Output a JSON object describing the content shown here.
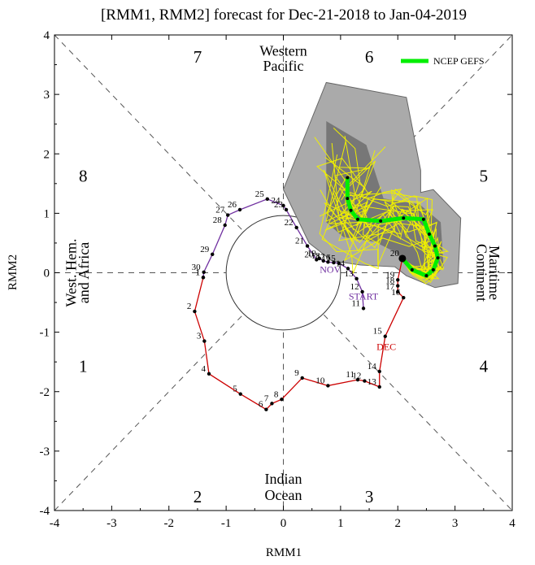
{
  "chart_data": {
    "type": "scatter",
    "title": "[RMM1, RMM2] forecast for Dec-21-2018 to Jan-04-2019",
    "xlabel": "RMM1",
    "ylabel": "RMM2",
    "xlim": [
      -4,
      4
    ],
    "ylim": [
      -4,
      4
    ],
    "xticks": [
      "-4",
      "-3",
      "-2",
      "-1",
      "0",
      "1",
      "2",
      "3",
      "4"
    ],
    "yticks": [
      "-4",
      "-3",
      "-2",
      "-1",
      "0",
      "1",
      "2",
      "3",
      "4"
    ],
    "phase_labels": [
      {
        "text": "1",
        "x": -3.5,
        "y": -1.6
      },
      {
        "text": "2",
        "x": -1.5,
        "y": -3.8
      },
      {
        "text": "3",
        "x": 1.5,
        "y": -3.8
      },
      {
        "text": "4",
        "x": 3.5,
        "y": -1.6
      },
      {
        "text": "5",
        "x": 3.5,
        "y": 1.6
      },
      {
        "text": "6",
        "x": 1.5,
        "y": 3.6
      },
      {
        "text": "7",
        "x": -1.5,
        "y": 3.6
      },
      {
        "text": "8",
        "x": -3.5,
        "y": 1.6
      }
    ],
    "region_labels": {
      "top": [
        "Western",
        "Pacific"
      ],
      "bottom": [
        "Indian",
        "Ocean"
      ],
      "left": [
        "West. Hem.",
        "and Africa"
      ],
      "right": [
        "Maritime",
        "Continent"
      ]
    },
    "month_labels": [
      {
        "text": "START",
        "x": 1.4,
        "y": -0.45,
        "color": "#7030a0"
      },
      {
        "text": "NOV",
        "x": 0.82,
        "y": 0.0,
        "color": "#7030a0"
      },
      {
        "text": "DEC",
        "x": 1.8,
        "y": -1.3,
        "color": "#cc0000"
      }
    ],
    "legend": {
      "entry": "NCEP GEFS",
      "color": "#00ee00",
      "position": "top-right"
    },
    "series": [
      {
        "name": "NOV",
        "color": "#7030a0",
        "points": [
          {
            "label": "11",
            "x": 1.4,
            "y": -0.6
          },
          {
            "label": "12",
            "x": 1.38,
            "y": -0.32
          },
          {
            "label": "13",
            "x": 1.28,
            "y": -0.1
          },
          {
            "label": "14",
            "x": 1.13,
            "y": 0.07
          },
          {
            "label": "15",
            "x": 0.97,
            "y": 0.16
          },
          {
            "label": "16",
            "x": 0.88,
            "y": 0.17
          },
          {
            "label": "17",
            "x": 0.78,
            "y": 0.18
          },
          {
            "label": "18",
            "x": 0.7,
            "y": 0.2
          },
          {
            "label": "19",
            "x": 0.63,
            "y": 0.24
          },
          {
            "label": "20",
            "x": 0.58,
            "y": 0.22
          },
          {
            "label": "21",
            "x": 0.42,
            "y": 0.45
          },
          {
            "label": "22",
            "x": 0.23,
            "y": 0.76
          },
          {
            "label": "23",
            "x": 0.05,
            "y": 1.06
          },
          {
            "label": "24",
            "x": 0.0,
            "y": 1.13
          },
          {
            "label": "25",
            "x": -0.28,
            "y": 1.24
          },
          {
            "label": "26",
            "x": -0.76,
            "y": 1.06
          },
          {
            "label": "27",
            "x": -0.97,
            "y": 0.97
          },
          {
            "label": "28",
            "x": -1.02,
            "y": 0.8
          },
          {
            "label": "29",
            "x": -1.24,
            "y": 0.31
          },
          {
            "label": "30",
            "x": -1.39,
            "y": 0.01
          },
          {
            "label": "1",
            "x": -1.4,
            "y": -0.08
          }
        ]
      },
      {
        "name": "DEC",
        "color": "#cc0000",
        "points": [
          {
            "label": "1",
            "x": -1.4,
            "y": -0.08
          },
          {
            "label": "2",
            "x": -1.55,
            "y": -0.65
          },
          {
            "label": "3",
            "x": -1.38,
            "y": -1.15
          },
          {
            "label": "4",
            "x": -1.3,
            "y": -1.7
          },
          {
            "label": "5",
            "x": -0.75,
            "y": -2.04
          },
          {
            "label": "6",
            "x": -0.3,
            "y": -2.3
          },
          {
            "label": "7",
            "x": -0.2,
            "y": -2.2
          },
          {
            "label": "8",
            "x": -0.03,
            "y": -2.13
          },
          {
            "label": "9",
            "x": 0.33,
            "y": -1.77
          },
          {
            "label": "10",
            "x": 0.78,
            "y": -1.9
          },
          {
            "label": "11",
            "x": 1.3,
            "y": -1.8
          },
          {
            "label": "12",
            "x": 1.42,
            "y": -1.82
          },
          {
            "label": "13",
            "x": 1.68,
            "y": -1.92
          },
          {
            "label": "14",
            "x": 1.68,
            "y": -1.66
          },
          {
            "label": "15",
            "x": 1.78,
            "y": -1.07
          },
          {
            "label": "16",
            "x": 2.1,
            "y": -0.42
          },
          {
            "label": "17",
            "x": 2.0,
            "y": -0.32
          },
          {
            "label": "18",
            "x": 2.0,
            "y": -0.22
          },
          {
            "label": "19",
            "x": 2.0,
            "y": -0.12
          },
          {
            "label": "20",
            "x": 2.08,
            "y": 0.24
          }
        ]
      },
      {
        "name": "NCEP GEFS",
        "color": "#00ee00",
        "points": [
          {
            "x": 2.08,
            "y": 0.24
          },
          {
            "x": 2.25,
            "y": 0.05
          },
          {
            "x": 2.5,
            "y": -0.05
          },
          {
            "x": 2.62,
            "y": 0.05
          },
          {
            "x": 2.7,
            "y": 0.25
          },
          {
            "x": 2.65,
            "y": 0.45
          },
          {
            "x": 2.55,
            "y": 0.65
          },
          {
            "x": 2.45,
            "y": 0.9
          },
          {
            "x": 2.1,
            "y": 0.92
          },
          {
            "x": 1.7,
            "y": 0.87
          },
          {
            "x": 1.3,
            "y": 0.9
          },
          {
            "x": 1.18,
            "y": 1.05
          },
          {
            "x": 1.12,
            "y": 1.25
          },
          {
            "x": 1.12,
            "y": 1.6
          }
        ]
      }
    ]
  }
}
